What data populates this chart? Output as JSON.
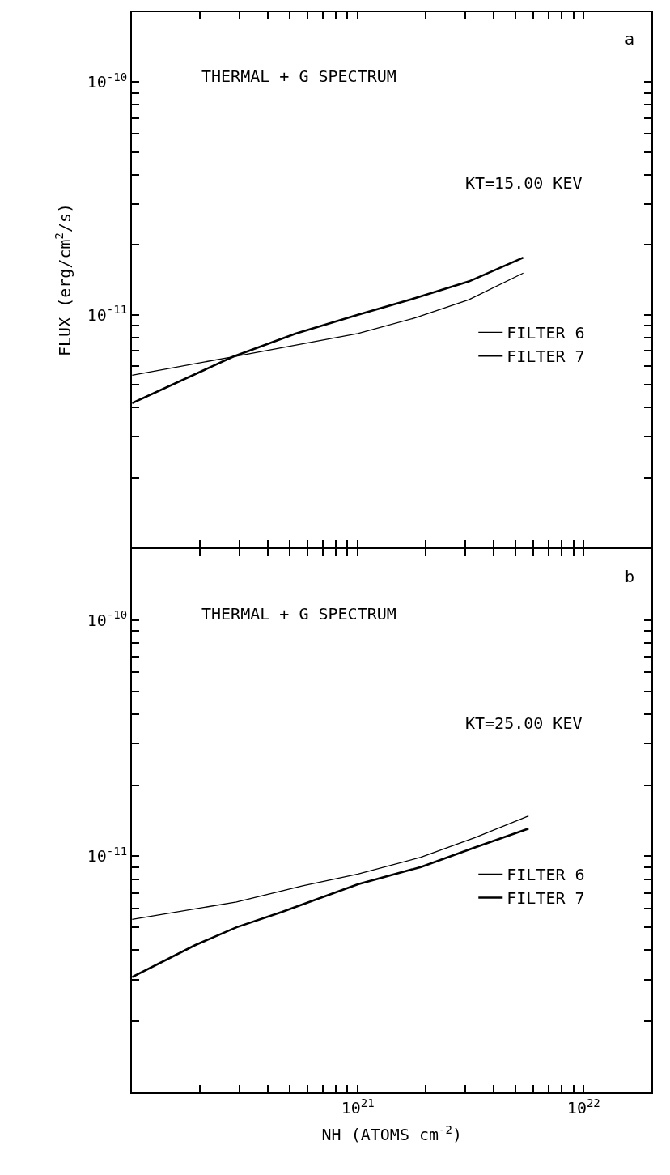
{
  "chart_data": [
    {
      "type": "line",
      "annotations": [
        "THERMAL + G SPECTRUM",
        "KT=15.00 KEV",
        "a"
      ],
      "ylabel": "FLUX (erg/cm$^{2}$/s)",
      "log": "xy",
      "legend": "right",
      "tick_labels": "y",
      "xlim": [
        1e+20,
        2e+22
      ],
      "ylim": [
        1e-12,
        2e-10
      ],
      "xticks": [
        {
          "value": 2e+20,
          "label": null
        },
        {
          "value": 3e+20,
          "label": null
        },
        {
          "value": 4e+20,
          "label": null
        },
        {
          "value": 5e+20,
          "label": null
        },
        {
          "value": 6e+20,
          "label": null
        },
        {
          "value": 7e+20,
          "label": null
        },
        {
          "value": 8e+20,
          "label": null
        },
        {
          "value": 9e+20,
          "label": null
        },
        {
          "value": 1e+21,
          "label": null
        },
        {
          "value": 2e+21,
          "label": null
        },
        {
          "value": 3e+21,
          "label": null
        },
        {
          "value": 4e+21,
          "label": null
        },
        {
          "value": 5e+21,
          "label": null
        },
        {
          "value": 6e+21,
          "label": null
        },
        {
          "value": 7e+21,
          "label": null
        },
        {
          "value": 8e+21,
          "label": null
        },
        {
          "value": 9e+21,
          "label": null
        },
        {
          "value": 1e+22,
          "label": null
        }
      ],
      "yticks": [
        {
          "value": 2e-12,
          "label": null
        },
        {
          "value": 3e-12,
          "label": null
        },
        {
          "value": 4e-12,
          "label": null
        },
        {
          "value": 5e-12,
          "label": null
        },
        {
          "value": 6e-12,
          "label": null
        },
        {
          "value": 7e-12,
          "label": null
        },
        {
          "value": 8e-12,
          "label": null
        },
        {
          "value": 9e-12,
          "label": null
        },
        {
          "value": 1e-11,
          "label": "10$^{-11}$"
        },
        {
          "value": 2e-11,
          "label": null
        },
        {
          "value": 3e-11,
          "label": null
        },
        {
          "value": 4e-11,
          "label": null
        },
        {
          "value": 5e-11,
          "label": null
        },
        {
          "value": 6e-11,
          "label": null
        },
        {
          "value": 7e-11,
          "label": null
        },
        {
          "value": 8e-11,
          "label": null
        },
        {
          "value": 9e-11,
          "label": null
        },
        {
          "value": 1e-10,
          "label": "10$^{-10}$"
        }
      ],
      "series": [
        {
          "name": "FILTER 6",
          "color": "#000000",
          "x": [
            1e+20,
            2.8e+20,
            7.1e+20,
            1e+21,
            1.8e+21,
            3.1e+21,
            5.4e+21
          ],
          "values": [
            5.5e-12,
            6.6e-12,
            7.8e-12,
            8.3e-12,
            9.7e-12,
            1.16e-11,
            1.51e-11
          ]
        },
        {
          "name": "FILTER 7",
          "color": "#000000",
          "x": [
            1e+20,
            2.8e+20,
            5.3e+20,
            1e+21,
            1.8e+21,
            3.1e+21,
            5.4e+21
          ],
          "values": [
            4.17e-12,
            6.6e-12,
            8.3e-12,
            1e-11,
            1.18e-11,
            1.39e-11,
            1.76e-11
          ]
        }
      ]
    },
    {
      "type": "line",
      "annotations": [
        "THERMAL + G SPECTRUM",
        "KT=25.00 KEV",
        "b"
      ],
      "xlabel": "NH (ATOMS cm$^{-2}$)",
      "log": "xy",
      "legend": "right",
      "xlim": [
        1e+20,
        2e+22
      ],
      "ylim": [
        1e-12,
        2e-10
      ],
      "xticks": [
        {
          "value": 2e+20,
          "label": null
        },
        {
          "value": 3e+20,
          "label": null
        },
        {
          "value": 4e+20,
          "label": null
        },
        {
          "value": 5e+20,
          "label": null
        },
        {
          "value": 6e+20,
          "label": null
        },
        {
          "value": 7e+20,
          "label": null
        },
        {
          "value": 8e+20,
          "label": null
        },
        {
          "value": 9e+20,
          "label": null
        },
        {
          "value": 1e+21,
          "label": "10$^{21}$"
        },
        {
          "value": 2e+21,
          "label": null
        },
        {
          "value": 3e+21,
          "label": null
        },
        {
          "value": 4e+21,
          "label": null
        },
        {
          "value": 5e+21,
          "label": null
        },
        {
          "value": 6e+21,
          "label": null
        },
        {
          "value": 7e+21,
          "label": null
        },
        {
          "value": 8e+21,
          "label": null
        },
        {
          "value": 9e+21,
          "label": null
        },
        {
          "value": 1e+22,
          "label": "10$^{22}$"
        }
      ],
      "yticks": [
        {
          "value": 2e-12,
          "label": null
        },
        {
          "value": 3e-12,
          "label": null
        },
        {
          "value": 4e-12,
          "label": null
        },
        {
          "value": 5e-12,
          "label": null
        },
        {
          "value": 6e-12,
          "label": null
        },
        {
          "value": 7e-12,
          "label": null
        },
        {
          "value": 8e-12,
          "label": null
        },
        {
          "value": 9e-12,
          "label": null
        },
        {
          "value": 1e-11,
          "label": "10$^{-11}$"
        },
        {
          "value": 2e-11,
          "label": null
        },
        {
          "value": 3e-11,
          "label": null
        },
        {
          "value": 4e-11,
          "label": null
        },
        {
          "value": 5e-11,
          "label": null
        },
        {
          "value": 6e-11,
          "label": null
        },
        {
          "value": 7e-11,
          "label": null
        },
        {
          "value": 8e-11,
          "label": null
        },
        {
          "value": 9e-11,
          "label": null
        },
        {
          "value": 1e-10,
          "label": "10$^{-10}$"
        }
      ],
      "series": [
        {
          "name": "FILTER 6",
          "color": "#000000",
          "x": [
            1e+20,
            2.9e+20,
            5.7e+20,
            1e+21,
            1.9e+21,
            3.3e+21,
            5.7e+21
          ],
          "values": [
            5.4e-12,
            6.4e-12,
            7.5e-12,
            8.4e-12,
            9.9e-12,
            1.2e-11,
            1.48e-11
          ]
        },
        {
          "name": "FILTER 7",
          "color": "#000000",
          "x": [
            1e+20,
            1.9e+20,
            2.9e+20,
            4.6e+20,
            1e+21,
            1.9e+21,
            3.3e+21,
            5.7e+21
          ],
          "values": [
            3.08e-12,
            4.2e-12,
            5e-12,
            5.8e-12,
            7.6e-12,
            9e-12,
            1.09e-11,
            1.31e-11
          ]
        }
      ]
    }
  ]
}
